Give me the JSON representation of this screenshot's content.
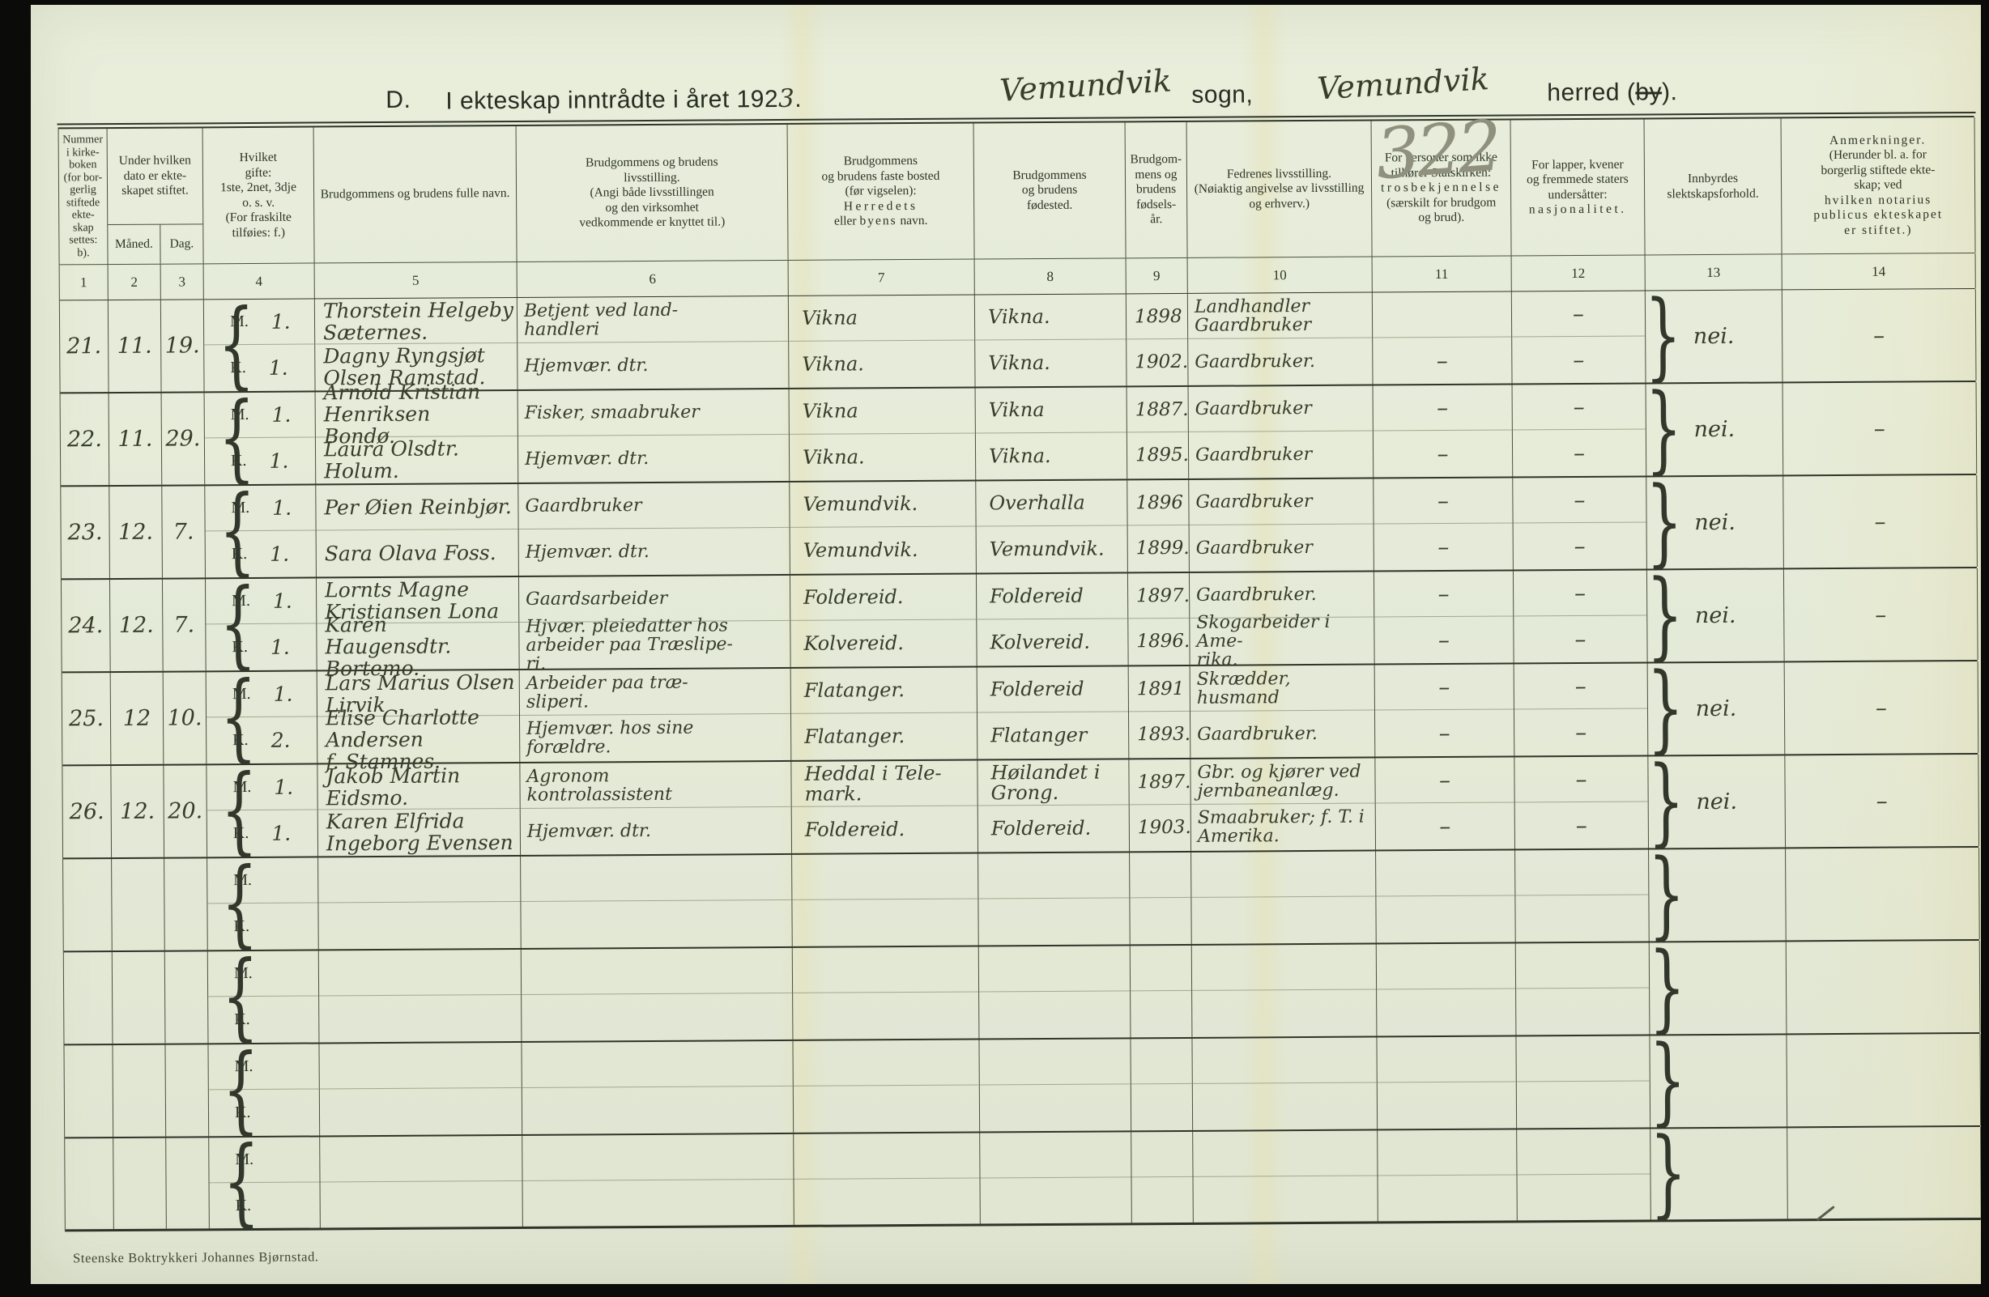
{
  "page": {
    "title_prefix": "D.",
    "title_main": "I ekteskap inntrådte i året 192",
    "title_year_digit": "3",
    "title_suffix": ".",
    "sogn_name": "Vemundvik",
    "sogn_label": "sogn,",
    "herred_name": "Vemundvik",
    "herred_pre": "herred (",
    "herred_struck": "by",
    "herred_post": ").",
    "footer": "Steenske Boktrykkeri Johannes Bjørnstad."
  },
  "table": {
    "mk": {
      "m": "M.",
      "k": "K."
    },
    "col_numbers": [
      "1",
      "2",
      "3",
      "4",
      "5",
      "6",
      "7",
      "8",
      "9",
      "10",
      "11",
      "12",
      "13",
      "14"
    ],
    "headers": {
      "c1": "Nummer\ni kirke-\nboken\n(for bor-\ngerlig\nstiftede\nekte-\nskap\nsettes:\nb).",
      "c23_top": "Under hvilken\ndato er ekte-\nskapet stiftet.",
      "c2_sub": "Måned.",
      "c3_sub": "Dag.",
      "c4": "Hvilket\ngifte:\n1ste, 2net, 3dje\no. s. v.\n(For fraskilte\ntilføies: f.)",
      "c5": "Brudgommens og brudens fulle navn.",
      "c6": "Brudgommens og brudens\nlivsstilling.\n(Angi både livsstillingen\nog den virksomhet\nvedkommende er knyttet til.)",
      "c7_l1": "Brudgommens",
      "c7_l2": "og brudens faste bosted",
      "c7_l3": "(før vigselen):",
      "c7_l4": "Herredets",
      "c7_l5a": "eller",
      "c7_l5b": "byens",
      "c7_l5c": "navn.",
      "c8": "Brudgommens\nog brudens\nfødested.",
      "c9": "Brudgom-\nmens og\nbrudens\nfødsels-\når.",
      "c10": "Fedrenes livsstilling.\n(Nøiaktig angivelse av livsstilling\nog erhverv.)",
      "c11_l1": "For personer som ikke",
      "c11_l2": "tilhører Statskirken:",
      "c11_l3": "trosbekjennelse",
      "c11_l4": "(særskilt for brudgom",
      "c11_l5": "og brud).",
      "c12_l1": "For lapper, kvener",
      "c12_l2": "og fremmede staters",
      "c12_l3": "undersåtter:",
      "c12_l4": "nasjonalitet.",
      "c13": "Innbyrdes\nslektskapsforhold.",
      "c14_l1": "Anmerkninger.",
      "c14_l2": "(Herunder bl. a. for",
      "c14_l3": "borgerlig stiftede ekte-",
      "c14_l4": "skap; ved",
      "c14_l5": "hvilken notarius",
      "c14_l6": "publicus ekteskapet",
      "c14_l7": "er stiftet.)"
    },
    "rows": [
      {
        "nr": "21.",
        "maaned": "11.",
        "dag": "19.",
        "m": {
          "gifte": "1.",
          "navn": "Thorstein Helgeby Sæternes.",
          "livsstilling": "Betjent ved land-\nhandleri",
          "bosted": "Vikna",
          "fodested": "Vikna.",
          "aar": "1898",
          "fedrene": "Landhandler\nGaardbruker",
          "tro": "",
          "nasj": "–"
        },
        "k": {
          "gifte": "1.",
          "navn": "Dagny Ryngsjøt Olsen Ramstad.",
          "livsstilling": "Hjemvær. dtr.",
          "bosted": "Vikna.",
          "fodested": "Vikna.",
          "aar": "1902.",
          "fedrene": "Gaardbruker.",
          "tro": "–",
          "nasj": "–"
        },
        "pencil": "322",
        "slekt": "nei.",
        "anm": "–"
      },
      {
        "nr": "22.",
        "maaned": "11.",
        "dag": "29.",
        "m": {
          "gifte": "1.",
          "navn": "Arnold Kristian Henriksen\nBondø.",
          "livsstilling": "Fisker, smaabruker",
          "bosted": "Vikna",
          "fodested": "Vikna",
          "aar": "1887.",
          "fedrene": "Gaardbruker",
          "tro": "–",
          "nasj": "–"
        },
        "k": {
          "gifte": "1.",
          "navn": "Laura Olsdtr. Holum.",
          "livsstilling": "Hjemvær. dtr.",
          "bosted": "Vikna.",
          "fodested": "Vikna.",
          "aar": "1895.",
          "fedrene": "Gaardbruker",
          "tro": "–",
          "nasj": "–"
        },
        "slekt": "nei.",
        "anm": "–"
      },
      {
        "nr": "23.",
        "maaned": "12.",
        "dag": "7.",
        "m": {
          "gifte": "1.",
          "navn": "Per Øien Reinbjør.",
          "livsstilling": "Gaardbruker",
          "bosted": "Vemundvik.",
          "fodested": "Overhalla",
          "aar": "1896",
          "fedrene": "Gaardbruker",
          "tro": "–",
          "nasj": "–"
        },
        "k": {
          "gifte": "1.",
          "navn": "Sara Olava Foss.",
          "livsstilling": "Hjemvær. dtr.",
          "bosted": "Vemundvik.",
          "fodested": "Vemundvik.",
          "aar": "1899.",
          "fedrene": "Gaardbruker",
          "tro": "–",
          "nasj": "–"
        },
        "slekt": "nei.",
        "anm": "–"
      },
      {
        "nr": "24.",
        "maaned": "12.",
        "dag": "7.",
        "m": {
          "gifte": "1.",
          "navn": "Lornts Magne Kristiansen Lona",
          "livsstilling": "Gaardsarbeider",
          "bosted": "Foldereid.",
          "fodested": "Foldereid",
          "aar": "1897.",
          "fedrene": "Gaardbruker.",
          "tro": "–",
          "nasj": "–"
        },
        "k": {
          "gifte": "1.",
          "navn": "Karen Haugensdtr. Bortemo.",
          "livsstilling": "Hjvær. pleiedatter hos\narbeider paa Træslipe-\nri.",
          "bosted": "Kolvereid.",
          "fodested": "Kolvereid.",
          "aar": "1896.",
          "fedrene": "Skogarbeider i Ame-\nrika.",
          "tro": "–",
          "nasj": "–"
        },
        "slekt": "nei.",
        "anm": "–"
      },
      {
        "nr": "25.",
        "maaned": "12",
        "dag": "10.",
        "m": {
          "gifte": "1.",
          "navn": "Lars Marius Olsen Lirvik",
          "livsstilling": "Arbeider paa træ-\nsliperi.",
          "bosted": "Flatanger.",
          "fodested": "Foldereid",
          "aar": "1891",
          "fedrene": "Skrædder, husmand",
          "tro": "–",
          "nasj": "–"
        },
        "k": {
          "gifte": "2.",
          "navn": "Elise Charlotte Andersen\nf. Stamnes.",
          "livsstilling": "Hjemvær. hos sine\nforældre.",
          "bosted": "Flatanger.",
          "fodested": "Flatanger",
          "aar": "1893.",
          "fedrene": "Gaardbruker.",
          "tro": "–",
          "nasj": "–"
        },
        "slekt": "nei.",
        "anm": "–"
      },
      {
        "nr": "26.",
        "maaned": "12.",
        "dag": "20.",
        "m": {
          "gifte": "1.",
          "navn": "Jakob Martin Eidsmo.",
          "livsstilling": "Agronom\nkontrolassistent",
          "bosted": "Heddal i Tele-\nmark.",
          "fodested": "Høilandet i\nGrong.",
          "aar": "1897.",
          "fedrene": "Gbr. og kjører ved\njernbaneanlæg.",
          "tro": "–",
          "nasj": "–"
        },
        "k": {
          "gifte": "1.",
          "navn": "Karen Elfrida Ingeborg Evensen",
          "livsstilling": "Hjemvær. dtr.",
          "bosted": "Foldereid.",
          "fodested": "Foldereid.",
          "aar": "1903.",
          "fedrene": "Smaabruker; f. T. i\nAmerika.",
          "tro": "–",
          "nasj": "–"
        },
        "slekt": "nei.",
        "anm": "–"
      }
    ]
  }
}
